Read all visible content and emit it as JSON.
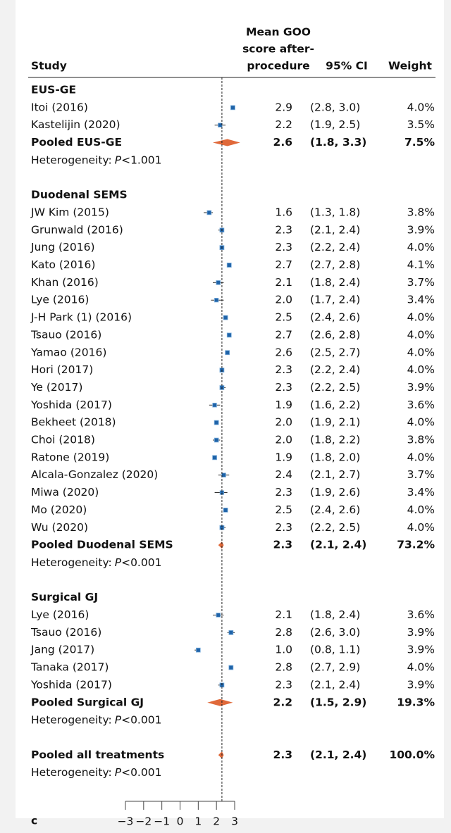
{
  "chart_data": {
    "type": "forest",
    "panel_label": "c",
    "headers": {
      "study": "Study",
      "mean": [
        "Mean GOO",
        "score after-",
        "procedure"
      ],
      "ci": "95% CI",
      "weight": "Weight"
    },
    "xlim": [
      -3,
      3
    ],
    "xticks": [
      {
        "value": -3,
        "label": "−3"
      },
      {
        "value": -2,
        "label": "−2"
      },
      {
        "value": -1,
        "label": "−1"
      },
      0,
      1,
      2,
      3
    ],
    "marker_color": "#1f63a8",
    "diamond_color": "#e0693a",
    "groups": [
      {
        "title": "EUS-GE",
        "rows": [
          {
            "study": "Itoi (2016)",
            "mean": 2.9,
            "mean_label": "2.9",
            "ci": [
              2.8,
              3.0
            ],
            "ci_label": "(2.8, 3.0)",
            "weight": 4.0,
            "weight_label": "4.0%"
          },
          {
            "study": "Kastelijin (2020)",
            "mean": 2.2,
            "mean_label": "2.2",
            "ci": [
              1.9,
              2.5
            ],
            "ci_label": "(1.9, 2.5)",
            "weight": 3.5,
            "weight_label": "3.5%"
          }
        ],
        "pooled": {
          "study": "Pooled EUS-GE",
          "mean": 2.6,
          "mean_label": "2.6",
          "ci": [
            1.8,
            3.3
          ],
          "ci_label": "(1.8, 3.3)",
          "weight": 7.5,
          "weight_label": "7.5%"
        },
        "heterogeneity": {
          "label": "Heterogeneity:",
          "p": "P",
          "value": "<1.001"
        }
      },
      {
        "title": "Duodenal SEMS",
        "rows": [
          {
            "study": "JW Kim (2015)",
            "mean": 1.6,
            "mean_label": "1.6",
            "ci": [
              1.3,
              1.8
            ],
            "ci_label": "(1.3, 1.8)",
            "weight": 3.8,
            "weight_label": "3.8%"
          },
          {
            "study": "Grunwald (2016)",
            "mean": 2.3,
            "mean_label": "2.3",
            "ci": [
              2.1,
              2.4
            ],
            "ci_label": "(2.1, 2.4)",
            "weight": 3.9,
            "weight_label": "3.9%"
          },
          {
            "study": "Jung (2016)",
            "mean": 2.3,
            "mean_label": "2.3",
            "ci": [
              2.2,
              2.4
            ],
            "ci_label": "(2.2, 2.4)",
            "weight": 4.0,
            "weight_label": "4.0%"
          },
          {
            "study": "Kato (2016)",
            "mean": 2.7,
            "mean_label": "2.7",
            "ci": [
              2.7,
              2.8
            ],
            "ci_label": "(2.7, 2.8)",
            "weight": 4.1,
            "weight_label": "4.1%"
          },
          {
            "study": "Khan (2016)",
            "mean": 2.1,
            "mean_label": "2.1",
            "ci": [
              1.8,
              2.4
            ],
            "ci_label": "(1.8, 2.4)",
            "weight": 3.7,
            "weight_label": "3.7%"
          },
          {
            "study": "Lye (2016)",
            "mean": 2.0,
            "mean_label": "2.0",
            "ci": [
              1.7,
              2.4
            ],
            "ci_label": "(1.7, 2.4)",
            "weight": 3.4,
            "weight_label": "3.4%"
          },
          {
            "study": "J-H Park (1) (2016)",
            "mean": 2.5,
            "mean_label": "2.5",
            "ci": [
              2.4,
              2.6
            ],
            "ci_label": "(2.4, 2.6)",
            "weight": 4.0,
            "weight_label": "4.0%"
          },
          {
            "study": "Tsauo (2016)",
            "mean": 2.7,
            "mean_label": "2.7",
            "ci": [
              2.6,
              2.8
            ],
            "ci_label": "(2.6, 2.8)",
            "weight": 4.0,
            "weight_label": "4.0%"
          },
          {
            "study": "Yamao (2016)",
            "mean": 2.6,
            "mean_label": "2.6",
            "ci": [
              2.5,
              2.7
            ],
            "ci_label": "(2.5, 2.7)",
            "weight": 4.0,
            "weight_label": "4.0%"
          },
          {
            "study": "Hori (2017)",
            "mean": 2.3,
            "mean_label": "2.3",
            "ci": [
              2.2,
              2.4
            ],
            "ci_label": "(2.2, 2.4)",
            "weight": 4.0,
            "weight_label": "4.0%"
          },
          {
            "study": "Ye (2017)",
            "mean": 2.3,
            "mean_label": "2.3",
            "ci": [
              2.2,
              2.5
            ],
            "ci_label": "(2.2, 2.5)",
            "weight": 3.9,
            "weight_label": "3.9%"
          },
          {
            "study": "Yoshida (2017)",
            "mean": 1.9,
            "mean_label": "1.9",
            "ci": [
              1.6,
              2.2
            ],
            "ci_label": "(1.6, 2.2)",
            "weight": 3.6,
            "weight_label": "3.6%"
          },
          {
            "study": "Bekheet (2018)",
            "mean": 2.0,
            "mean_label": "2.0",
            "ci": [
              1.9,
              2.1
            ],
            "ci_label": "(1.9, 2.1)",
            "weight": 4.0,
            "weight_label": "4.0%"
          },
          {
            "study": "Choi (2018)",
            "mean": 2.0,
            "mean_label": "2.0",
            "ci": [
              1.8,
              2.2
            ],
            "ci_label": "(1.8, 2.2)",
            "weight": 3.8,
            "weight_label": "3.8%"
          },
          {
            "study": "Ratone (2019)",
            "mean": 1.9,
            "mean_label": "1.9",
            "ci": [
              1.8,
              2.0
            ],
            "ci_label": "(1.8, 2.0)",
            "weight": 4.0,
            "weight_label": "4.0%"
          },
          {
            "study": "Alcala-Gonzalez (2020)",
            "mean": 2.4,
            "mean_label": "2.4",
            "ci": [
              2.1,
              2.7
            ],
            "ci_label": "(2.1, 2.7)",
            "weight": 3.7,
            "weight_label": "3.7%"
          },
          {
            "study": "Miwa (2020)",
            "mean": 2.3,
            "mean_label": "2.3",
            "ci": [
              1.9,
              2.6
            ],
            "ci_label": "(1.9, 2.6)",
            "weight": 3.4,
            "weight_label": "3.4%"
          },
          {
            "study": "Mo (2020)",
            "mean": 2.5,
            "mean_label": "2.5",
            "ci": [
              2.4,
              2.6
            ],
            "ci_label": "(2.4, 2.6)",
            "weight": 4.0,
            "weight_label": "4.0%"
          },
          {
            "study": "Wu (2020)",
            "mean": 2.3,
            "mean_label": "2.3",
            "ci": [
              2.2,
              2.5
            ],
            "ci_label": "(2.2, 2.5)",
            "weight": 4.0,
            "weight_label": "4.0%"
          }
        ],
        "pooled": {
          "study": "Pooled Duodenal SEMS",
          "mean": 2.3,
          "mean_label": "2.3",
          "ci": [
            2.1,
            2.4
          ],
          "ci_label": "(2.1, 2.4)",
          "weight": 73.2,
          "weight_label": "73.2%"
        },
        "heterogeneity": {
          "label": "Heterogeneity:",
          "p": "P",
          "value": "<0.001"
        }
      },
      {
        "title": "Surgical GJ",
        "rows": [
          {
            "study": "Lye (2016)",
            "mean": 2.1,
            "mean_label": "2.1",
            "ci": [
              1.8,
              2.4
            ],
            "ci_label": "(1.8, 2.4)",
            "weight": 3.6,
            "weight_label": "3.6%"
          },
          {
            "study": "Tsauo (2016)",
            "mean": 2.8,
            "mean_label": "2.8",
            "ci": [
              2.6,
              3.0
            ],
            "ci_label": "(2.6, 3.0)",
            "weight": 3.9,
            "weight_label": "3.9%"
          },
          {
            "study": "Jang (2017)",
            "mean": 1.0,
            "mean_label": "1.0",
            "ci": [
              0.8,
              1.1
            ],
            "ci_label": "(0.8, 1.1)",
            "weight": 3.9,
            "weight_label": "3.9%"
          },
          {
            "study": "Tanaka (2017)",
            "mean": 2.8,
            "mean_label": "2.8",
            "ci": [
              2.7,
              2.9
            ],
            "ci_label": "(2.7, 2.9)",
            "weight": 4.0,
            "weight_label": "4.0%"
          },
          {
            "study": "Yoshida (2017)",
            "mean": 2.3,
            "mean_label": "2.3",
            "ci": [
              2.1,
              2.4
            ],
            "ci_label": "(2.1, 2.4)",
            "weight": 3.9,
            "weight_label": "3.9%"
          }
        ],
        "pooled": {
          "study": "Pooled Surgical GJ",
          "mean": 2.2,
          "mean_label": "2.2",
          "ci": [
            1.5,
            2.9
          ],
          "ci_label": "(1.5, 2.9)",
          "weight": 19.3,
          "weight_label": "19.3%"
        },
        "heterogeneity": {
          "label": "Heterogeneity:",
          "p": "P",
          "value": "<0.001"
        }
      }
    ],
    "overall": {
      "study": "Pooled all treatments",
      "mean": 2.3,
      "mean_label": "2.3",
      "ci": [
        2.1,
        2.4
      ],
      "ci_label": "(2.1, 2.4)",
      "weight": 100.0,
      "weight_label": "100.0%",
      "heterogeneity": {
        "label": "Heterogeneity:",
        "p": "P",
        "value": "<0.001"
      }
    }
  }
}
